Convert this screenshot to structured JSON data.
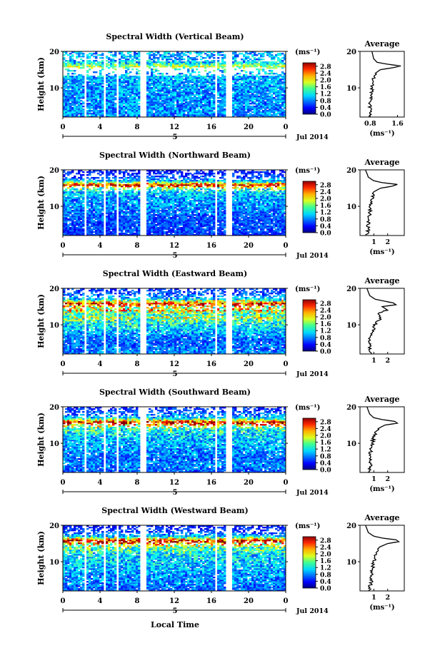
{
  "panels": [
    {
      "title": "Spectral Width (Vertical Beam)",
      "ylabel": "Height (km)",
      "yticks": [
        "20",
        "10"
      ],
      "xticks": [
        "0",
        "4",
        "8",
        "12",
        "16",
        "20",
        "0"
      ],
      "day": "5",
      "date": "Jul 2014",
      "cbar_unit": "(ms⁻¹)",
      "cbar_ticks": [
        "2.8",
        "2.4",
        "2.0",
        "1.6",
        "1.2",
        "0.8",
        "0.4",
        "0.0"
      ],
      "avg_title": "Average",
      "avg_yticks": [
        "20",
        "10"
      ],
      "avg_xticks": [
        "0.8",
        "1.6"
      ],
      "avg_unit": "(ms⁻¹)"
    },
    {
      "title": "Spectral Width (Northward Beam)",
      "ylabel": "Height (km)",
      "yticks": [
        "20",
        "10"
      ],
      "xticks": [
        "0",
        "4",
        "8",
        "12",
        "16",
        "20",
        "0"
      ],
      "day": "5",
      "date": "Jul 2014",
      "cbar_unit": "(ms⁻¹)",
      "cbar_ticks": [
        "2.8",
        "2.4",
        "2.0",
        "1.6",
        "1.2",
        "0.8",
        "0.4",
        "0.0"
      ],
      "avg_title": "Average",
      "avg_yticks": [
        "20",
        "10"
      ],
      "avg_xticks": [
        "1",
        "2"
      ],
      "avg_unit": "(ms⁻¹)"
    },
    {
      "title": "Spectral Width (Eastward Beam)",
      "ylabel": "Height (km)",
      "yticks": [
        "20",
        "10"
      ],
      "xticks": [
        "0",
        "4",
        "8",
        "12",
        "16",
        "20",
        "0"
      ],
      "day": "5",
      "date": "Jul 2014",
      "cbar_unit": "(ms⁻¹)",
      "cbar_ticks": [
        "2.8",
        "2.4",
        "2.0",
        "1.6",
        "1.2",
        "0.8",
        "0.4",
        "0.0"
      ],
      "avg_title": "Average",
      "avg_yticks": [
        "20",
        "10"
      ],
      "avg_xticks": [
        "1",
        "2"
      ],
      "avg_unit": ""
    },
    {
      "title": "Spectral Width (Southward Beam)",
      "ylabel": "Height (km)",
      "yticks": [
        "20",
        "10"
      ],
      "xticks": [
        "0",
        "4",
        "8",
        "12",
        "16",
        "20",
        "0"
      ],
      "day": "5",
      "date": "Jul 2014",
      "cbar_unit": "(ms⁻¹)",
      "cbar_ticks": [
        "2.8",
        "2.4",
        "2.0",
        "1.6",
        "1.2",
        "0.8",
        "0.4",
        "0.0"
      ],
      "avg_title": "Average",
      "avg_yticks": [
        "20",
        "10"
      ],
      "avg_xticks": [
        "1",
        "2"
      ],
      "avg_unit": "(ms⁻¹)"
    },
    {
      "title": "Spectral Width (Westward Beam)",
      "ylabel": "Height (km)",
      "yticks": [
        "20",
        "10"
      ],
      "xticks": [
        "0",
        "4",
        "8",
        "12",
        "16",
        "20",
        "0"
      ],
      "day": "5",
      "date": "Jul 2014",
      "cbar_unit": "(ms⁻¹)",
      "cbar_ticks": [
        "2.8",
        "2.4",
        "2.0",
        "1.6",
        "1.2",
        "0.8",
        "0.4",
        "0.0"
      ],
      "avg_title": "Average",
      "avg_yticks": [
        "20",
        "10"
      ],
      "avg_xticks": [
        "1",
        "2"
      ],
      "avg_unit": "(ms⁻¹)"
    }
  ],
  "xlabel": "Local Time",
  "chart_data": [
    {
      "type": "heatmap",
      "title": "Spectral Width (Vertical Beam)",
      "xlabel": "",
      "ylabel": "Height (km)",
      "xlim": [
        0,
        24
      ],
      "ylim": [
        2,
        20
      ],
      "colorbar": {
        "min": 0.0,
        "max": 3.0,
        "label": "(ms⁻¹)"
      },
      "data_gaps_hours": [
        [
          2.2,
          2.6
        ],
        [
          4.3,
          4.7
        ],
        [
          5.7,
          6.0
        ],
        [
          8.4,
          8.9
        ],
        [
          16.3,
          16.7
        ],
        [
          17.6,
          18.3
        ]
      ],
      "profile": {
        "title": "Average",
        "heights_km": [
          2,
          4,
          6,
          8,
          10,
          12,
          14,
          15,
          15.5,
          16,
          16.5,
          17,
          18,
          20
        ],
        "values": [
          0.8,
          0.8,
          0.8,
          0.82,
          0.85,
          0.88,
          0.95,
          1.1,
          1.45,
          1.7,
          1.3,
          1.0,
          0.9,
          0.85
        ],
        "xlim": [
          0.5,
          1.8
        ]
      }
    },
    {
      "type": "heatmap",
      "title": "Spectral Width (Northward Beam)",
      "xlabel": "",
      "ylabel": "Height (km)",
      "xlim": [
        0,
        24
      ],
      "ylim": [
        2,
        20
      ],
      "colorbar": {
        "min": 0.0,
        "max": 3.0,
        "label": "(ms⁻¹)"
      },
      "data_gaps_hours": [
        [
          2.2,
          2.6
        ],
        [
          4.3,
          4.7
        ],
        [
          5.7,
          6.0
        ],
        [
          8.4,
          8.9
        ],
        [
          16.3,
          16.7
        ],
        [
          17.6,
          18.3
        ]
      ],
      "profile": {
        "title": "Average",
        "heights_km": [
          2,
          4,
          6,
          8,
          10,
          12,
          14,
          15,
          15.5,
          16,
          16.5,
          17,
          18,
          20
        ],
        "values": [
          0.5,
          0.6,
          0.6,
          0.7,
          0.8,
          0.85,
          1.0,
          1.5,
          2.3,
          2.7,
          1.6,
          1.0,
          0.6,
          0.4
        ],
        "xlim": [
          0.0,
          3.2
        ]
      }
    },
    {
      "type": "heatmap",
      "title": "Spectral Width (Eastward Beam)",
      "xlabel": "",
      "ylabel": "Height (km)",
      "xlim": [
        0,
        24
      ],
      "ylim": [
        2,
        20
      ],
      "colorbar": {
        "min": 0.0,
        "max": 3.0,
        "label": "(ms⁻¹)"
      },
      "data_gaps_hours": [
        [
          2.2,
          2.6
        ],
        [
          4.3,
          4.7
        ],
        [
          5.7,
          6.0
        ],
        [
          8.4,
          8.9
        ],
        [
          16.3,
          16.7
        ],
        [
          17.6,
          18.3
        ]
      ],
      "profile": {
        "title": "Average",
        "heights_km": [
          2,
          4,
          6,
          8,
          10,
          11,
          12,
          13,
          14,
          15,
          15.5,
          16,
          17,
          18,
          20
        ],
        "values": [
          0.8,
          0.7,
          0.7,
          0.9,
          1.1,
          1.3,
          1.6,
          1.2,
          2.0,
          1.6,
          2.6,
          2.4,
          1.1,
          0.7,
          0.5
        ],
        "xlim": [
          0.0,
          3.2
        ]
      }
    },
    {
      "type": "heatmap",
      "title": "Spectral Width (Southward Beam)",
      "xlabel": "",
      "ylabel": "Height (km)",
      "xlim": [
        0,
        24
      ],
      "ylim": [
        2,
        20
      ],
      "colorbar": {
        "min": 0.0,
        "max": 3.0,
        "label": "(ms⁻¹)"
      },
      "data_gaps_hours": [
        [
          2.2,
          2.6
        ],
        [
          4.3,
          4.7
        ],
        [
          5.7,
          6.0
        ],
        [
          8.4,
          8.9
        ],
        [
          16.3,
          16.7
        ],
        [
          17.6,
          18.3
        ]
      ],
      "profile": {
        "title": "Average",
        "heights_km": [
          2,
          4,
          6,
          8,
          10,
          12,
          14,
          15,
          15.5,
          16,
          16.5,
          17,
          18,
          20
        ],
        "values": [
          0.6,
          0.8,
          0.7,
          0.8,
          0.9,
          1.0,
          1.3,
          1.8,
          2.7,
          2.5,
          1.6,
          1.0,
          0.7,
          0.5
        ],
        "xlim": [
          0.0,
          3.2
        ]
      }
    },
    {
      "type": "heatmap",
      "title": "Spectral Width (Westward Beam)",
      "xlabel": "Local Time",
      "ylabel": "Height (km)",
      "xlim": [
        0,
        24
      ],
      "ylim": [
        2,
        20
      ],
      "colorbar": {
        "min": 0.0,
        "max": 3.0,
        "label": "(ms⁻¹)"
      },
      "data_gaps_hours": [
        [
          2.2,
          2.6
        ],
        [
          4.3,
          4.7
        ],
        [
          5.7,
          6.0
        ],
        [
          8.4,
          8.9
        ],
        [
          16.3,
          16.7
        ],
        [
          17.6,
          18.3
        ]
      ],
      "profile": {
        "title": "Average",
        "heights_km": [
          2,
          4,
          6,
          8,
          10,
          12,
          14,
          15,
          15.5,
          16,
          16.5,
          17,
          18,
          20
        ],
        "values": [
          0.6,
          0.8,
          0.8,
          0.9,
          1.0,
          1.1,
          1.4,
          2.0,
          2.8,
          2.6,
          1.6,
          1.0,
          0.6,
          0.4
        ],
        "xlim": [
          0.0,
          3.2
        ]
      }
    }
  ]
}
